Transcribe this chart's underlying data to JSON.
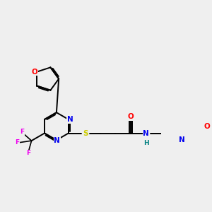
{
  "background_color": "#efefef",
  "bond_color": "#000000",
  "atom_colors": {
    "O": "#ff0000",
    "N": "#0000ee",
    "S": "#cccc00",
    "F": "#ee00ee",
    "H": "#008080",
    "C": "#000000"
  },
  "figsize": [
    3.0,
    3.0
  ],
  "dpi": 100
}
